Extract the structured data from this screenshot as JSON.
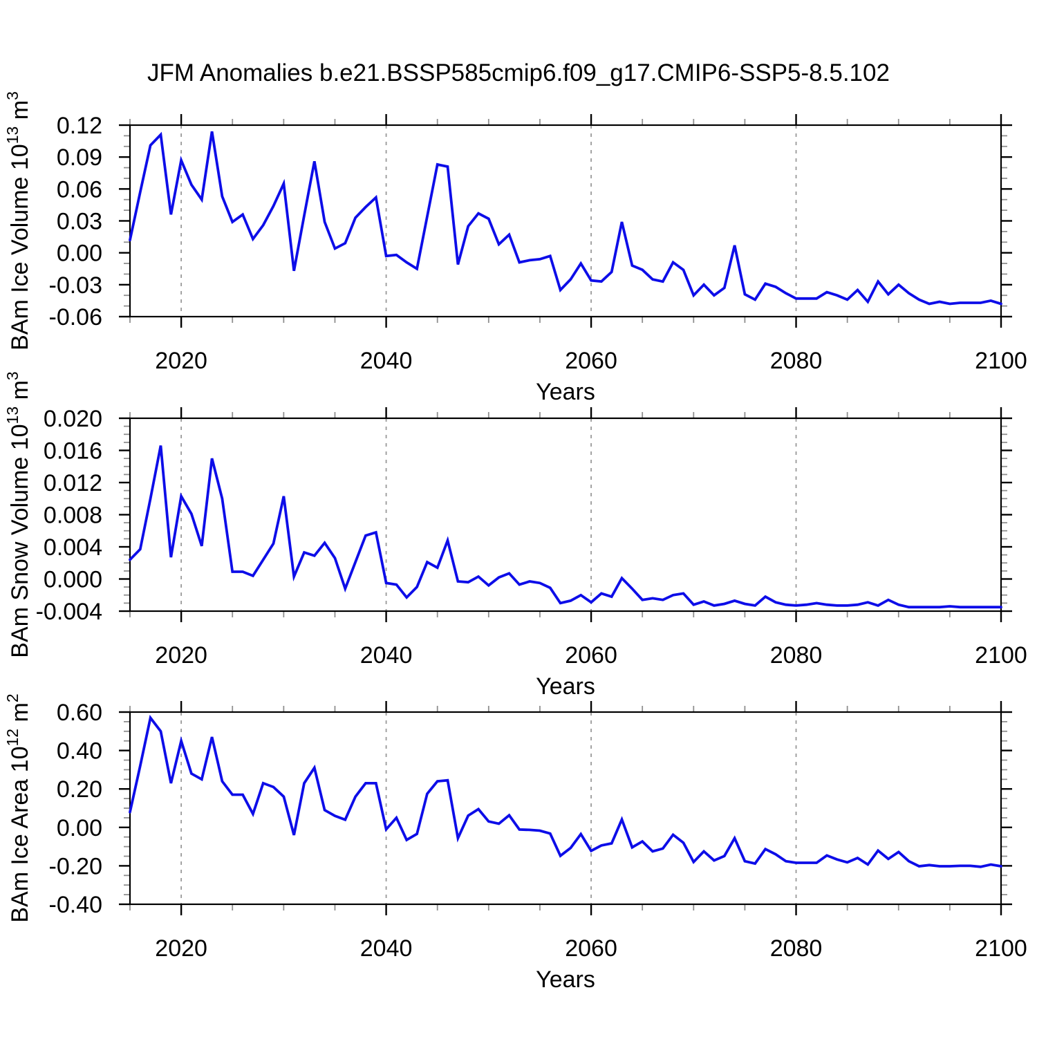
{
  "title": "JFM Anomalies b.e21.BSSP585cmip6.f09_g17.CMIP6-SSP5-8.5.102",
  "line_color": "#0D0DE8",
  "axis_color": "#000000",
  "minor_tick_color": "#8f8f8f",
  "gridline_color": "#999999",
  "chart_data": [
    {
      "type": "line",
      "ylabel": "BAm Ice Volume 10^13 m^3",
      "ylabel_parts": [
        {
          "t": "BAm Ice Volume 10"
        },
        {
          "t": "13",
          "sup": true
        },
        {
          "t": " m"
        },
        {
          "t": "3",
          "sup": true
        }
      ],
      "xlabel": "Years",
      "x_start": 2015,
      "x_end": 2100,
      "x_step": 1,
      "x_major_ticks": [
        2020,
        2040,
        2060,
        2080,
        2100
      ],
      "x_minor_step": 5,
      "x_gridlines": [
        2020,
        2040,
        2060,
        2080
      ],
      "ylim": [
        -0.06,
        0.12
      ],
      "y_minor_step": 0.01,
      "y_major_ticks": [
        {
          "v": 0.12,
          "label": "0.12"
        },
        {
          "v": 0.09,
          "label": "0.09"
        },
        {
          "v": 0.06,
          "label": "0.06"
        },
        {
          "v": 0.03,
          "label": "0.03"
        },
        {
          "v": 0.0,
          "label": "0.00"
        },
        {
          "v": -0.03,
          "label": "-0.03"
        },
        {
          "v": -0.06,
          "label": "-0.06"
        }
      ],
      "values": [
        0.012,
        0.057,
        0.101,
        0.111,
        0.036,
        0.087,
        0.064,
        0.05,
        0.114,
        0.053,
        0.029,
        0.036,
        0.013,
        0.026,
        0.044,
        0.065,
        -0.017,
        0.035,
        0.086,
        0.029,
        0.004,
        0.009,
        0.033,
        0.043,
        0.052,
        -0.003,
        -0.002,
        -0.009,
        -0.015,
        0.034,
        0.083,
        0.081,
        -0.011,
        0.025,
        0.037,
        0.032,
        0.008,
        0.017,
        -0.009,
        -0.007,
        -0.006,
        -0.003,
        -0.035,
        -0.025,
        -0.01,
        -0.026,
        -0.027,
        -0.018,
        0.029,
        -0.012,
        -0.016,
        -0.025,
        -0.027,
        -0.009,
        -0.016,
        -0.04,
        -0.03,
        -0.04,
        -0.033,
        0.007,
        -0.039,
        -0.044,
        -0.029,
        -0.032,
        -0.038,
        -0.043,
        -0.043,
        -0.043,
        -0.037,
        -0.04,
        -0.044,
        -0.035,
        -0.046,
        -0.027,
        -0.039,
        -0.03,
        -0.038,
        -0.044,
        -0.048,
        -0.046,
        -0.048,
        -0.047,
        -0.047,
        -0.047,
        -0.045,
        -0.048
      ]
    },
    {
      "type": "line",
      "ylabel": "BAm Snow Volume 10^13 m^3",
      "ylabel_parts": [
        {
          "t": "BAm Snow Volume 10"
        },
        {
          "t": "13",
          "sup": true
        },
        {
          "t": " m"
        },
        {
          "t": "3",
          "sup": true
        }
      ],
      "xlabel": "Years",
      "x_start": 2015,
      "x_end": 2100,
      "x_step": 1,
      "x_major_ticks": [
        2020,
        2040,
        2060,
        2080,
        2100
      ],
      "x_minor_step": 5,
      "x_gridlines": [
        2020,
        2040,
        2060,
        2080
      ],
      "ylim": [
        -0.004,
        0.02
      ],
      "y_minor_step": 0.001,
      "y_major_ticks": [
        {
          "v": 0.02,
          "label": "0.020"
        },
        {
          "v": 0.016,
          "label": "0.016"
        },
        {
          "v": 0.012,
          "label": "0.012"
        },
        {
          "v": 0.008,
          "label": "0.008"
        },
        {
          "v": 0.004,
          "label": "0.004"
        },
        {
          "v": 0.0,
          "label": "0.000"
        },
        {
          "v": -0.004,
          "label": "-0.004"
        }
      ],
      "values": [
        0.0024,
        0.0037,
        0.01,
        0.0166,
        0.0027,
        0.0103,
        0.0081,
        0.0041,
        0.015,
        0.01,
        0.0009,
        0.0009,
        0.0004,
        0.0024,
        0.0044,
        0.0103,
        0.0003,
        0.0033,
        0.0029,
        0.0045,
        0.0026,
        -0.0012,
        0.0021,
        0.0054,
        0.0058,
        -0.0005,
        -0.0007,
        -0.0023,
        -0.001,
        0.0021,
        0.0014,
        0.0048,
        -0.0003,
        -0.0004,
        0.0003,
        -0.0008,
        0.0002,
        0.0007,
        -0.0007,
        -0.0003,
        -0.0005,
        -0.0011,
        -0.003,
        -0.0027,
        -0.002,
        -0.0029,
        -0.0018,
        -0.0022,
        0.0001,
        -0.0012,
        -0.0026,
        -0.0024,
        -0.0026,
        -0.002,
        -0.0018,
        -0.0032,
        -0.0028,
        -0.0033,
        -0.0031,
        -0.0027,
        -0.0031,
        -0.0033,
        -0.0022,
        -0.0029,
        -0.0032,
        -0.0033,
        -0.0032,
        -0.003,
        -0.0032,
        -0.0033,
        -0.0033,
        -0.0032,
        -0.0029,
        -0.0033,
        -0.0026,
        -0.0032,
        -0.0035,
        -0.0035,
        -0.0035,
        -0.0035,
        -0.0034,
        -0.0035,
        -0.0035,
        -0.0035,
        -0.0035,
        -0.0035
      ]
    },
    {
      "type": "line",
      "ylabel": "BAm Ice Area 10^12 m^2",
      "ylabel_parts": [
        {
          "t": "BAm Ice Area 10"
        },
        {
          "t": "12",
          "sup": true
        },
        {
          "t": " m"
        },
        {
          "t": "2",
          "sup": true
        }
      ],
      "xlabel": "Years",
      "x_start": 2015,
      "x_end": 2100,
      "x_step": 1,
      "x_major_ticks": [
        2020,
        2040,
        2060,
        2080,
        2100
      ],
      "x_minor_step": 5,
      "x_gridlines": [
        2020,
        2040,
        2060,
        2080
      ],
      "ylim": [
        -0.4,
        0.6
      ],
      "y_minor_step": 0.05,
      "y_major_ticks": [
        {
          "v": 0.6,
          "label": "0.60"
        },
        {
          "v": 0.4,
          "label": "0.40"
        },
        {
          "v": 0.2,
          "label": "0.20"
        },
        {
          "v": 0.0,
          "label": "0.00"
        },
        {
          "v": -0.2,
          "label": "-0.20"
        },
        {
          "v": -0.4,
          "label": "-0.40"
        }
      ],
      "values": [
        0.08,
        0.32,
        0.57,
        0.5,
        0.23,
        0.45,
        0.28,
        0.25,
        0.47,
        0.24,
        0.17,
        0.17,
        0.07,
        0.23,
        0.21,
        0.16,
        -0.04,
        0.23,
        0.31,
        0.09,
        0.06,
        0.04,
        0.16,
        0.23,
        0.23,
        -0.01,
        0.05,
        -0.065,
        -0.034,
        0.175,
        0.24,
        0.245,
        -0.056,
        0.061,
        0.095,
        0.031,
        0.019,
        0.063,
        -0.011,
        -0.013,
        -0.017,
        -0.032,
        -0.148,
        -0.107,
        -0.035,
        -0.122,
        -0.094,
        -0.083,
        0.041,
        -0.104,
        -0.073,
        -0.125,
        -0.11,
        -0.038,
        -0.08,
        -0.18,
        -0.125,
        -0.172,
        -0.149,
        -0.056,
        -0.176,
        -0.188,
        -0.113,
        -0.14,
        -0.176,
        -0.184,
        -0.184,
        -0.184,
        -0.146,
        -0.167,
        -0.182,
        -0.159,
        -0.193,
        -0.121,
        -0.164,
        -0.128,
        -0.176,
        -0.202,
        -0.196,
        -0.202,
        -0.202,
        -0.2,
        -0.2,
        -0.205,
        -0.193,
        -0.202
      ]
    }
  ]
}
